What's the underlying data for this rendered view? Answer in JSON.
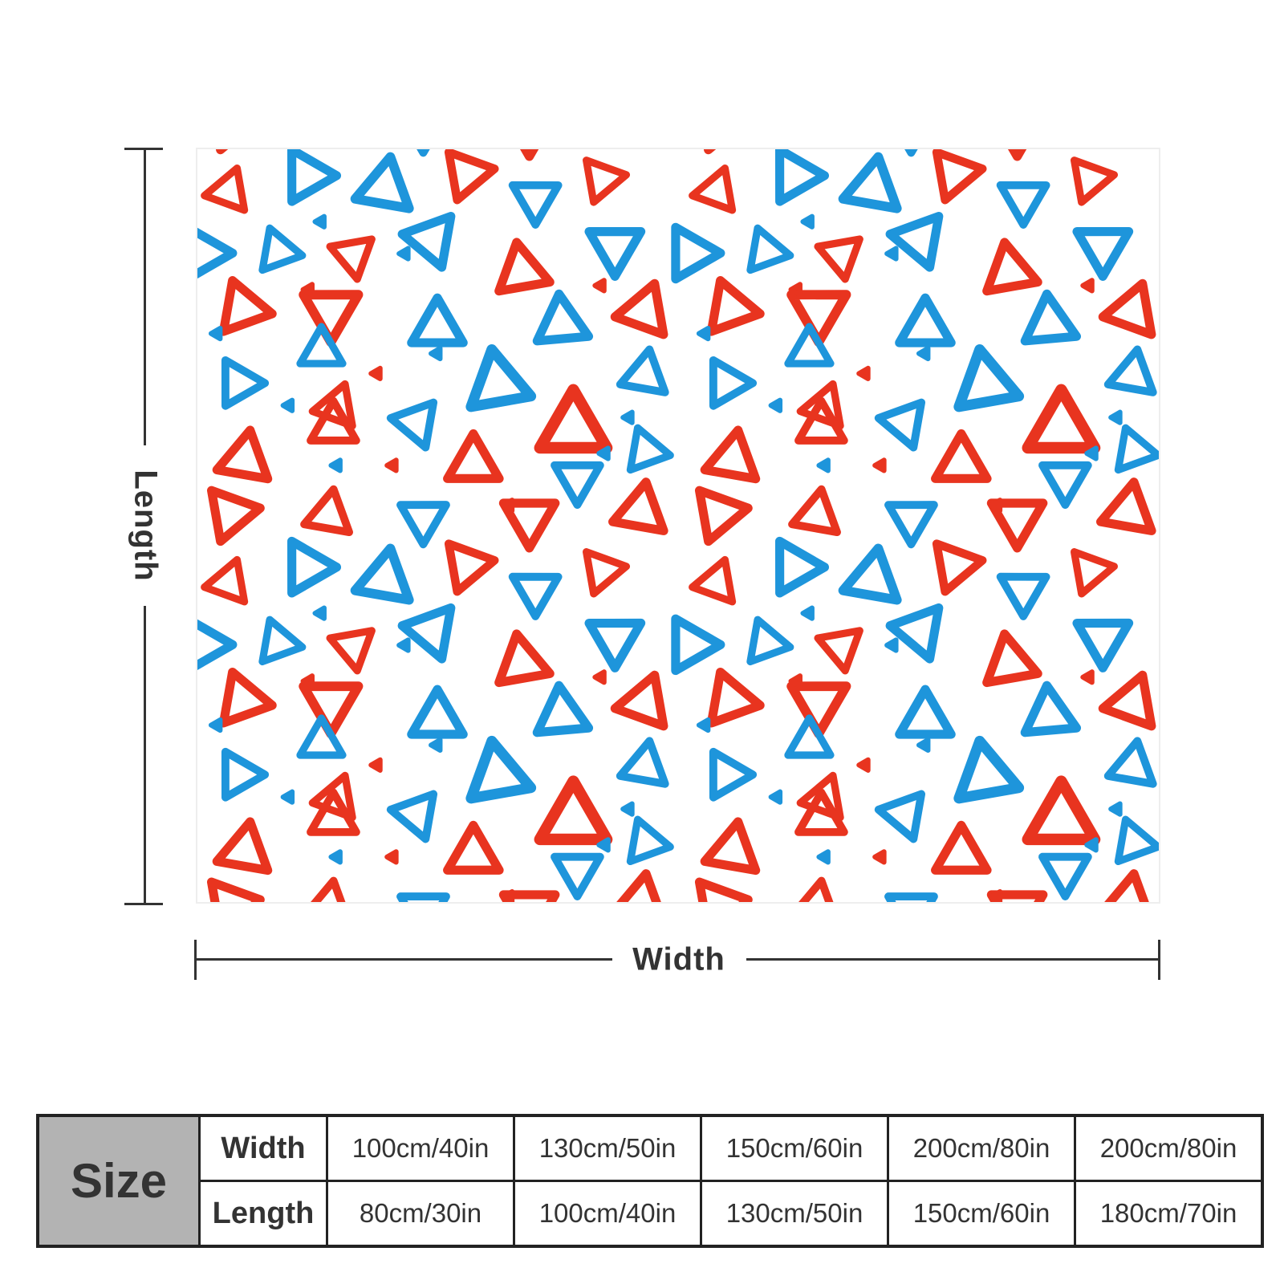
{
  "dimensions": {
    "length_label": "Length",
    "width_label": "Width"
  },
  "pattern": {
    "colors": {
      "red": "#e8341f",
      "blue": "#1e95db",
      "background": "#ffffff"
    }
  },
  "size_table": {
    "header": "Size",
    "width_label": "Width",
    "length_label": "Length",
    "widths": [
      "100cm/40in",
      "130cm/50in",
      "150cm/60in",
      "200cm/80in",
      "200cm/80in"
    ],
    "lengths": [
      "80cm/30in",
      "100cm/40in",
      "130cm/50in",
      "150cm/60in",
      "180cm/70in"
    ]
  }
}
